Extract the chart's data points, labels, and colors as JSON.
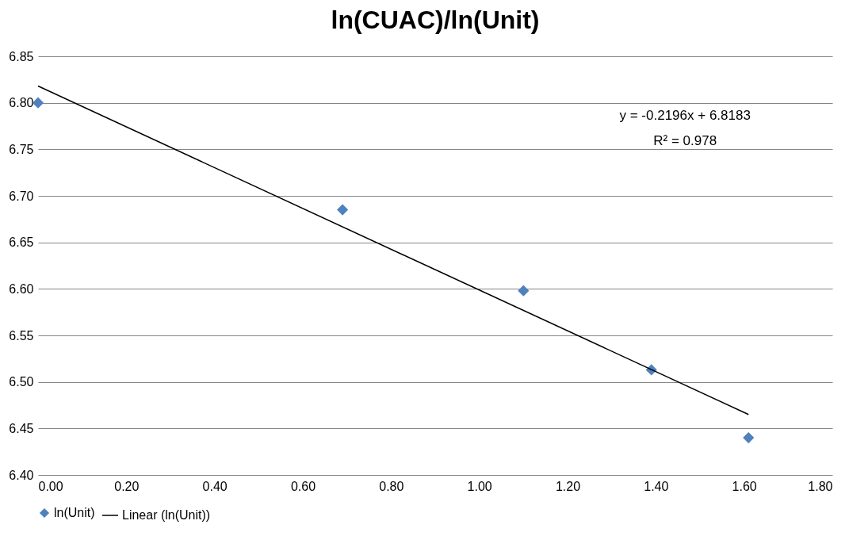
{
  "chart_data": {
    "type": "scatter",
    "title": "ln(CUAC)/ln(Unit)",
    "x": [
      0.0,
      0.69,
      1.1,
      1.39,
      1.61
    ],
    "series": [
      {
        "name": "ln(Unit)",
        "color": "#4f81bd",
        "marker": "diamond",
        "values": [
          6.8,
          6.685,
          6.598,
          6.513,
          6.44
        ]
      },
      {
        "name": "Linear (ln(Unit))",
        "type": "line",
        "color": "#000000",
        "line_style": "solid",
        "x": [
          0.0,
          1.61
        ],
        "values": [
          6.818,
          6.465
        ]
      }
    ],
    "xlim": [
      0,
      1.8
    ],
    "xticks": [
      {
        "value": 0,
        "label": "0.00"
      },
      {
        "value": 0.2,
        "label": "0.20"
      },
      {
        "value": 0.4,
        "label": "0.40"
      },
      {
        "value": 0.6,
        "label": "0.60"
      },
      {
        "value": 0.8,
        "label": "0.80"
      },
      {
        "value": 1.0,
        "label": "1.00"
      },
      {
        "value": 1.2,
        "label": "1.20"
      },
      {
        "value": 1.4,
        "label": "1.40"
      },
      {
        "value": 1.6,
        "label": "1.60"
      },
      {
        "value": 1.8,
        "label": "1.80"
      }
    ],
    "ylim": [
      6.4,
      6.85
    ],
    "yticks": [
      {
        "value": 6.4,
        "label": "6.40"
      },
      {
        "value": 6.45,
        "label": "6.45"
      },
      {
        "value": 6.5,
        "label": "6.50"
      },
      {
        "value": 6.55,
        "label": "6.55"
      },
      {
        "value": 6.6,
        "label": "6.60"
      },
      {
        "value": 6.65,
        "label": "6.65"
      },
      {
        "value": 6.7,
        "label": "6.70"
      },
      {
        "value": 6.75,
        "label": "6.75"
      },
      {
        "value": 6.8,
        "label": "6.80"
      },
      {
        "value": 6.85,
        "label": "6.85"
      }
    ],
    "annotations": [
      "y = -0.2196x + 6.8183",
      "R² = 0.978"
    ],
    "grid": "y",
    "legend": "bottom"
  }
}
